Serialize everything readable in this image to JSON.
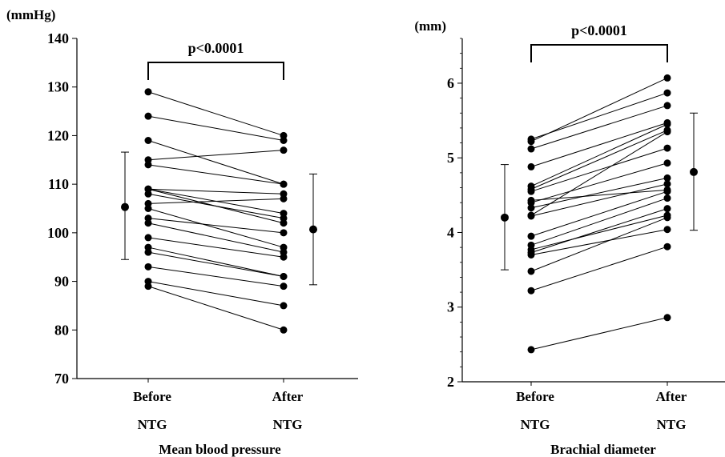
{
  "chart_data": [
    {
      "type": "scatter",
      "subtype": "paired-dot-plot",
      "title": "Mean blood pressure",
      "ylabel": "(mmHg)",
      "ylim": [
        70,
        140
      ],
      "yticks": [
        "70",
        "80",
        "90",
        "100",
        "110",
        "120",
        "130",
        "140"
      ],
      "categories": [
        {
          "top": "Before",
          "bottom": "NTG"
        },
        {
          "top": "After",
          "bottom": "NTG"
        }
      ],
      "significance": "p<0.0001",
      "pairs": [
        [
          129,
          120
        ],
        [
          124,
          119
        ],
        [
          119,
          110
        ],
        [
          115,
          117
        ],
        [
          114,
          110
        ],
        [
          109,
          104
        ],
        [
          109,
          102
        ],
        [
          109,
          108
        ],
        [
          108,
          103
        ],
        [
          106,
          107
        ],
        [
          105,
          97
        ],
        [
          103,
          100
        ],
        [
          102,
          96
        ],
        [
          99,
          95
        ],
        [
          97,
          91
        ],
        [
          96,
          91
        ],
        [
          93,
          89
        ],
        [
          90,
          85
        ],
        [
          89,
          80
        ]
      ],
      "summary": {
        "before": {
          "mean": 105.3,
          "low": 94.5,
          "high": 116.6
        },
        "after": {
          "mean": 100.7,
          "low": 89.3,
          "high": 112.1
        }
      }
    },
    {
      "type": "scatter",
      "subtype": "paired-dot-plot",
      "title": "Brachial diameter",
      "ylabel": "(mm)",
      "ylim": [
        2,
        6.6
      ],
      "yticks": [
        "2",
        "3",
        "4",
        "5",
        "6"
      ],
      "categories": [
        {
          "top": "Before",
          "bottom": "NTG"
        },
        {
          "top": "After",
          "bottom": "NTG"
        }
      ],
      "significance": "p<0.0001",
      "pairs": [
        [
          5.25,
          5.87
        ],
        [
          5.22,
          6.07
        ],
        [
          5.12,
          5.7
        ],
        [
          4.88,
          5.47
        ],
        [
          4.62,
          5.45
        ],
        [
          4.58,
          5.37
        ],
        [
          4.55,
          5.13
        ],
        [
          4.43,
          4.57
        ],
        [
          4.4,
          4.93
        ],
        [
          4.33,
          4.73
        ],
        [
          4.23,
          5.35
        ],
        [
          4.22,
          4.65
        ],
        [
          3.95,
          4.55
        ],
        [
          3.83,
          4.46
        ],
        [
          3.77,
          4.23
        ],
        [
          3.73,
          4.32
        ],
        [
          3.7,
          4.04
        ],
        [
          3.48,
          4.2
        ],
        [
          3.22,
          3.81
        ],
        [
          2.43,
          2.86
        ]
      ],
      "summary": {
        "before": {
          "mean": 4.2,
          "low": 3.5,
          "high": 4.91
        },
        "after": {
          "mean": 4.81,
          "low": 4.03,
          "high": 5.6
        }
      }
    }
  ]
}
